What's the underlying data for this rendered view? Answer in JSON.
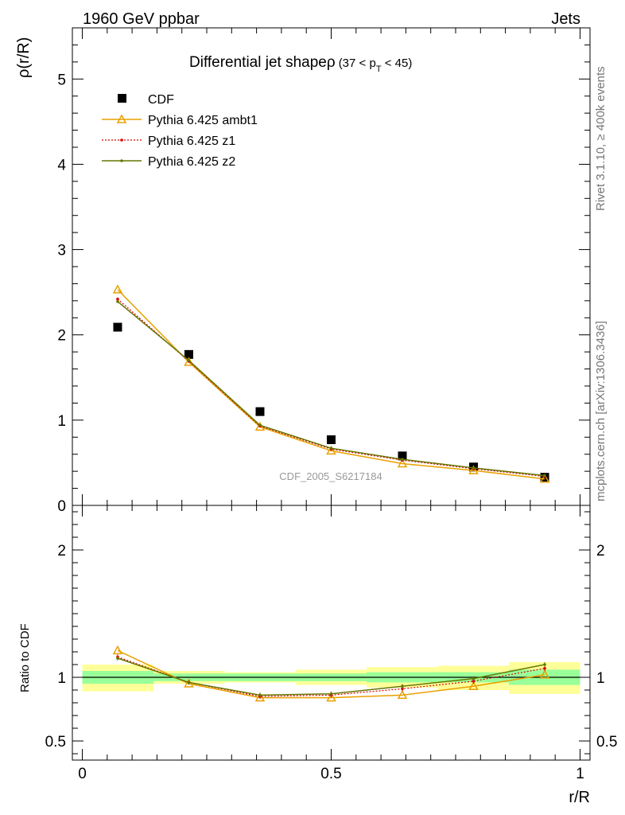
{
  "header": {
    "energy": "1960 GeV ppbar",
    "process": "Jets"
  },
  "side_labels": {
    "rivet": "Rivet 3.1.10, ≥ 400k events",
    "mcplots": "mcplots.cern.ch [arXiv:1306.3436]"
  },
  "analysis_id": "CDF_2005_S6217184",
  "colors": {
    "cdf": "#000000",
    "ambt1": "#e8a000",
    "z1": "#dd0000",
    "z2": "#667700",
    "band_inner": "#99ff99",
    "band_outer": "#ffff99"
  },
  "chart_data": [
    {
      "type": "scatter",
      "title_main": "Differential jet shapeρ",
      "title_range": "(37 < p",
      "title_sub": "T",
      "title_tail": " < 45)",
      "ylabel": "ρ(r/R)",
      "ylim": [
        0,
        5.6
      ],
      "yticks": [
        {
          "v": 1,
          "label": "1"
        },
        {
          "v": 2,
          "label": "2"
        },
        {
          "v": 3,
          "label": "3"
        },
        {
          "v": 4,
          "label": "4"
        },
        {
          "v": 5,
          "label": "5"
        },
        {
          "v": 0,
          "label": "0"
        }
      ],
      "x": [
        0.071,
        0.214,
        0.357,
        0.5,
        0.643,
        0.786,
        0.929
      ],
      "series": [
        {
          "name": "CDF",
          "marker": "square",
          "values": [
            2.09,
            1.77,
            1.1,
            0.77,
            0.58,
            0.45,
            0.33
          ]
        },
        {
          "name": "Pythia 6.425 ambt1",
          "marker": "triangle",
          "values": [
            2.53,
            1.68,
            0.92,
            0.64,
            0.49,
            0.41,
            0.31
          ]
        },
        {
          "name": "Pythia 6.425 z1",
          "marker": "dot",
          "values": [
            2.42,
            1.69,
            0.93,
            0.66,
            0.53,
            0.43,
            0.34
          ]
        },
        {
          "name": "Pythia 6.425 z2",
          "marker": "dot",
          "values": [
            2.39,
            1.7,
            0.94,
            0.67,
            0.54,
            0.44,
            0.35
          ]
        }
      ]
    },
    {
      "type": "line",
      "ylabel": "Ratio to CDF",
      "xlabel": "r/R",
      "xlim": [
        -0.02,
        1.02
      ],
      "ylim": [
        0.35,
        2.35
      ],
      "xticks": [
        {
          "v": 0,
          "label": "0"
        },
        {
          "v": 0.5,
          "label": "0.5"
        },
        {
          "v": 1,
          "label": "1"
        }
      ],
      "yticks": [
        {
          "v": 0.5,
          "label": "0.5"
        },
        {
          "v": 1,
          "label": "1"
        },
        {
          "v": 2,
          "label": "2"
        }
      ],
      "bins": [
        [
          0,
          0.143
        ],
        [
          0.143,
          0.286
        ],
        [
          0.286,
          0.429
        ],
        [
          0.429,
          0.571
        ],
        [
          0.571,
          0.714
        ],
        [
          0.714,
          0.857
        ],
        [
          0.857,
          1.0
        ]
      ],
      "band_inner": [
        [
          0.95,
          1.05
        ],
        [
          0.97,
          1.03
        ],
        [
          0.97,
          1.03
        ],
        [
          0.97,
          1.03
        ],
        [
          0.96,
          1.04
        ],
        [
          0.96,
          1.04
        ],
        [
          0.94,
          1.06
        ]
      ],
      "band_outer": [
        [
          0.89,
          1.1
        ],
        [
          0.95,
          1.05
        ],
        [
          0.96,
          1.04
        ],
        [
          0.94,
          1.06
        ],
        [
          0.92,
          1.08
        ],
        [
          0.9,
          1.09
        ],
        [
          0.87,
          1.12
        ]
      ],
      "x": [
        0.071,
        0.214,
        0.357,
        0.5,
        0.643,
        0.786,
        0.929
      ],
      "series": [
        {
          "name": "Pythia 6.425 ambt1",
          "values": [
            1.21,
            0.95,
            0.84,
            0.84,
            0.86,
            0.93,
            1.02
          ]
        },
        {
          "name": "Pythia 6.425 z1",
          "values": [
            1.16,
            0.96,
            0.85,
            0.86,
            0.91,
            0.97,
            1.07
          ]
        },
        {
          "name": "Pythia 6.425 z2",
          "values": [
            1.15,
            0.96,
            0.86,
            0.87,
            0.93,
            0.99,
            1.1
          ]
        }
      ]
    }
  ]
}
